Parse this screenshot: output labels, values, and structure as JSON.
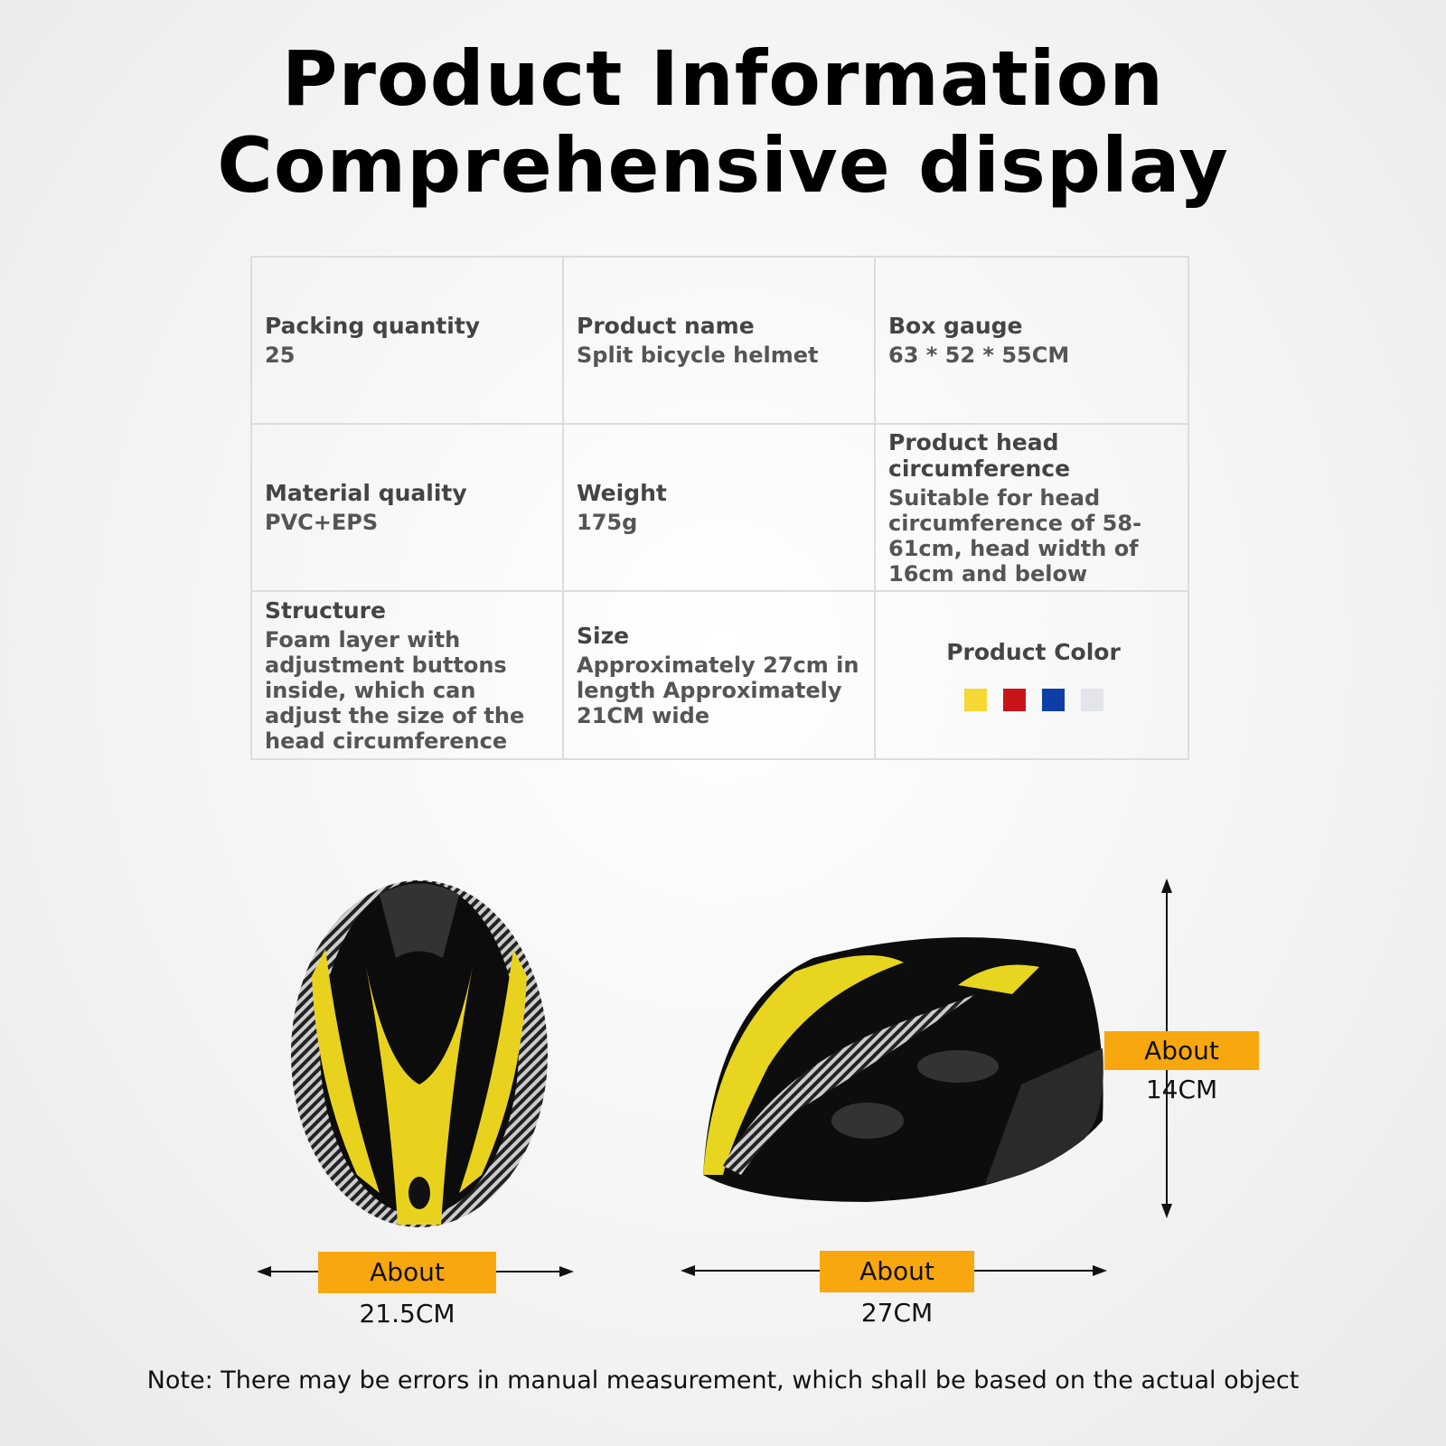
{
  "header": {
    "title_lines": [
      "Product Information",
      "Comprehensive display"
    ]
  },
  "table": {
    "rows": [
      [
        {
          "label": "Packing quantity",
          "value": "25"
        },
        {
          "label": "Product name",
          "value": "Split bicycle helmet"
        },
        {
          "label": "Box gauge",
          "value": "63 * 52 * 55CM"
        }
      ],
      [
        {
          "label": "Material quality",
          "value": "PVC+EPS"
        },
        {
          "label": "Weight",
          "value": "175g"
        },
        {
          "label": "Product head circumference",
          "value": "Suitable for head circumference of 58-61cm, head width of 16cm and below"
        }
      ],
      [
        {
          "label": "Structure",
          "value": "Foam layer with adjustment buttons inside, which can adjust the size of the head circumference"
        },
        {
          "label": "Size",
          "value": "Approximately 27cm in length Approximately 21CM wide"
        },
        {
          "label": "Product Color",
          "swatches": [
            "#f6d835",
            "#c8151b",
            "#0d3ea6",
            "#e3e5ea"
          ]
        }
      ]
    ]
  },
  "dimensions": {
    "top_width": "About 21.5CM",
    "side_length": "About 27CM",
    "side_height": "About 14CM"
  },
  "note": "Note: There may be errors in manual measurement, which shall be based on the actual object"
}
